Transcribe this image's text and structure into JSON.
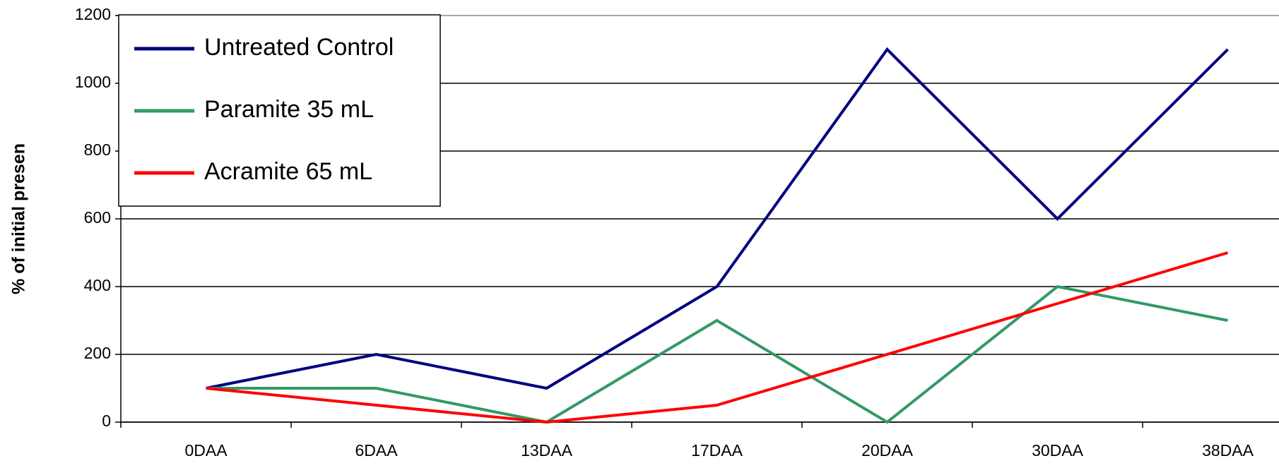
{
  "chart_data": {
    "type": "line",
    "y_label": "% of initial presen",
    "categories": [
      "0DAA",
      "6DAA",
      "13DAA",
      "17DAA",
      "20DAA",
      "30DAA",
      "38DAA"
    ],
    "series": [
      {
        "name": "Untreated Control",
        "color": "#000080",
        "values": [
          100,
          200,
          100,
          400,
          1100,
          600,
          1100
        ]
      },
      {
        "name": "Paramite 35 mL",
        "color": "#339966",
        "values": [
          100,
          100,
          0,
          300,
          0,
          400,
          300
        ]
      },
      {
        "name": "Acramite 65 mL",
        "color": "#ff0000",
        "values": [
          100,
          50,
          0,
          50,
          200,
          350,
          500
        ]
      }
    ],
    "ylim": [
      0,
      1200
    ],
    "yticks": [
      0,
      200,
      400,
      600,
      800,
      1000,
      1200
    ],
    "grid": true,
    "legend": "upper left"
  }
}
